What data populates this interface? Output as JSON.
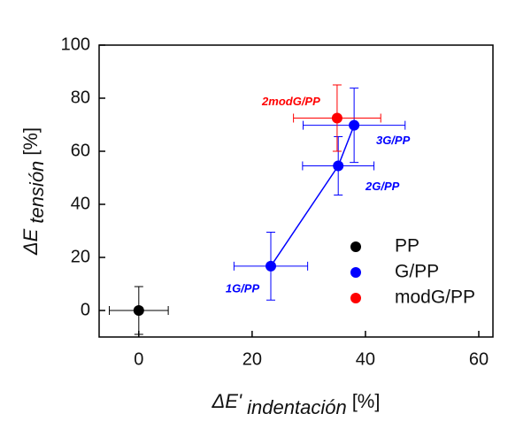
{
  "chart_data": {
    "type": "scatter",
    "xlabel": {
      "symbol": "ΔE'",
      "subscript": "indentación",
      "unit": "[%]"
    },
    "ylabel": {
      "symbol": "ΔE",
      "subscript": "tensión",
      "unit": "[%]"
    },
    "xlim": [
      -7,
      62.5
    ],
    "ylim": [
      -10,
      100
    ],
    "xticks": [
      0,
      20,
      40,
      60
    ],
    "yticks": [
      0,
      20,
      40,
      60,
      80,
      100
    ],
    "grid": false,
    "legend": "lower right",
    "series": [
      {
        "name": "PP",
        "color": "#000000",
        "x": [
          0
        ],
        "y": [
          0
        ],
        "xerr": [
          5.2
        ],
        "yerr": [
          9
        ],
        "connect": false
      },
      {
        "name": "G/PP",
        "color": "#0000ff",
        "x": [
          23.3,
          35.2,
          38
        ],
        "y": [
          16.7,
          54.5,
          69.8
        ],
        "xerr": [
          6.5,
          6.3,
          9
        ],
        "yerr": [
          12.8,
          11,
          14
        ],
        "labels": [
          "1G/PP",
          "2G/PP",
          "3G/PP"
        ],
        "connect": true
      },
      {
        "name": "modG/PP",
        "color": "#ff0000",
        "x": [
          35
        ],
        "y": [
          72.5
        ],
        "xerr": [
          7.7
        ],
        "yerr": [
          12.5
        ],
        "labels": [
          "2modG/PP"
        ],
        "connect": false
      }
    ]
  }
}
